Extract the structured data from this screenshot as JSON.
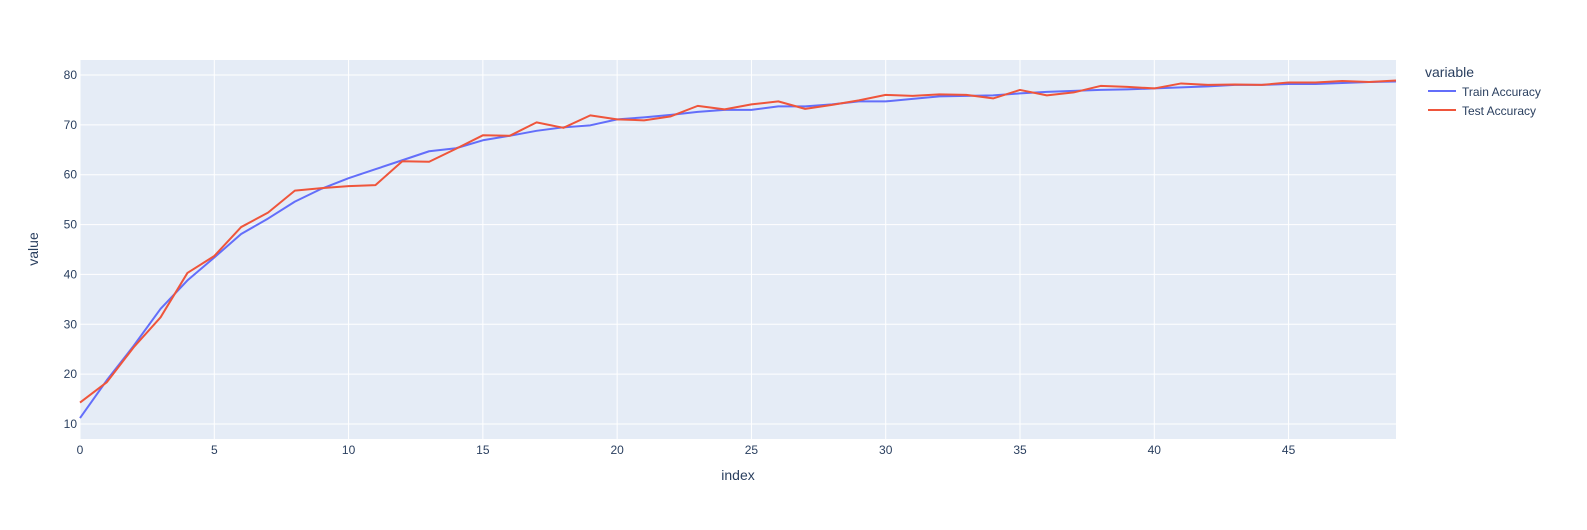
{
  "chart_data": {
    "type": "line",
    "xlabel": "index",
    "ylabel": "value",
    "xlim": [
      0,
      49
    ],
    "ylim": [
      7,
      83
    ],
    "xticks": [
      0,
      5,
      10,
      15,
      20,
      25,
      30,
      35,
      40,
      45
    ],
    "yticks": [
      10,
      20,
      30,
      40,
      50,
      60,
      70,
      80
    ],
    "grid": true,
    "legend": {
      "title": "variable",
      "placement": "right-outside-top"
    },
    "plot_bg": "#e5ecf6",
    "series": [
      {
        "name": "Train Accuracy",
        "color": "#636efa",
        "x": [
          0,
          1,
          2,
          3,
          4,
          5,
          6,
          7,
          8,
          9,
          10,
          11,
          12,
          13,
          14,
          15,
          16,
          17,
          18,
          19,
          20,
          21,
          22,
          23,
          24,
          25,
          26,
          27,
          28,
          29,
          30,
          31,
          32,
          33,
          34,
          35,
          36,
          37,
          38,
          39,
          40,
          41,
          42,
          43,
          44,
          45,
          46,
          47,
          48,
          49
        ],
        "values": [
          11.2,
          18.8,
          25.7,
          33.1,
          38.8,
          43.4,
          48.1,
          51.2,
          54.6,
          57.2,
          59.3,
          61.1,
          62.9,
          64.7,
          65.3,
          66.9,
          67.8,
          68.8,
          69.5,
          69.9,
          71.1,
          71.5,
          72.0,
          72.6,
          73.0,
          73.0,
          73.7,
          73.7,
          74.1,
          74.7,
          74.7,
          75.2,
          75.7,
          75.8,
          75.9,
          76.3,
          76.6,
          76.8,
          77.0,
          77.1,
          77.3,
          77.5,
          77.7,
          78.0,
          78.0,
          78.2,
          78.2,
          78.4,
          78.6,
          78.7
        ]
      },
      {
        "name": "Test Accuracy",
        "color": "#ef553b",
        "x": [
          0,
          1,
          2,
          3,
          4,
          5,
          6,
          7,
          8,
          9,
          10,
          11,
          12,
          13,
          14,
          15,
          16,
          17,
          18,
          19,
          20,
          21,
          22,
          23,
          24,
          25,
          26,
          27,
          28,
          29,
          30,
          31,
          32,
          33,
          34,
          35,
          36,
          37,
          38,
          39,
          40,
          41,
          42,
          43,
          44,
          45,
          46,
          47,
          48,
          49
        ],
        "values": [
          14.3,
          18.4,
          25.4,
          31.4,
          40.3,
          43.7,
          49.5,
          52.4,
          56.8,
          57.3,
          57.7,
          57.9,
          62.7,
          62.6,
          65.2,
          67.9,
          67.8,
          70.5,
          69.4,
          71.9,
          71.1,
          70.9,
          71.7,
          73.8,
          73.1,
          74.1,
          74.7,
          73.2,
          74.0,
          74.9,
          76.0,
          75.8,
          76.1,
          76.0,
          75.3,
          77.0,
          75.9,
          76.5,
          77.8,
          77.6,
          77.3,
          78.3,
          78.0,
          78.1,
          78.0,
          78.5,
          78.5,
          78.8,
          78.6,
          78.9
        ]
      }
    ]
  }
}
